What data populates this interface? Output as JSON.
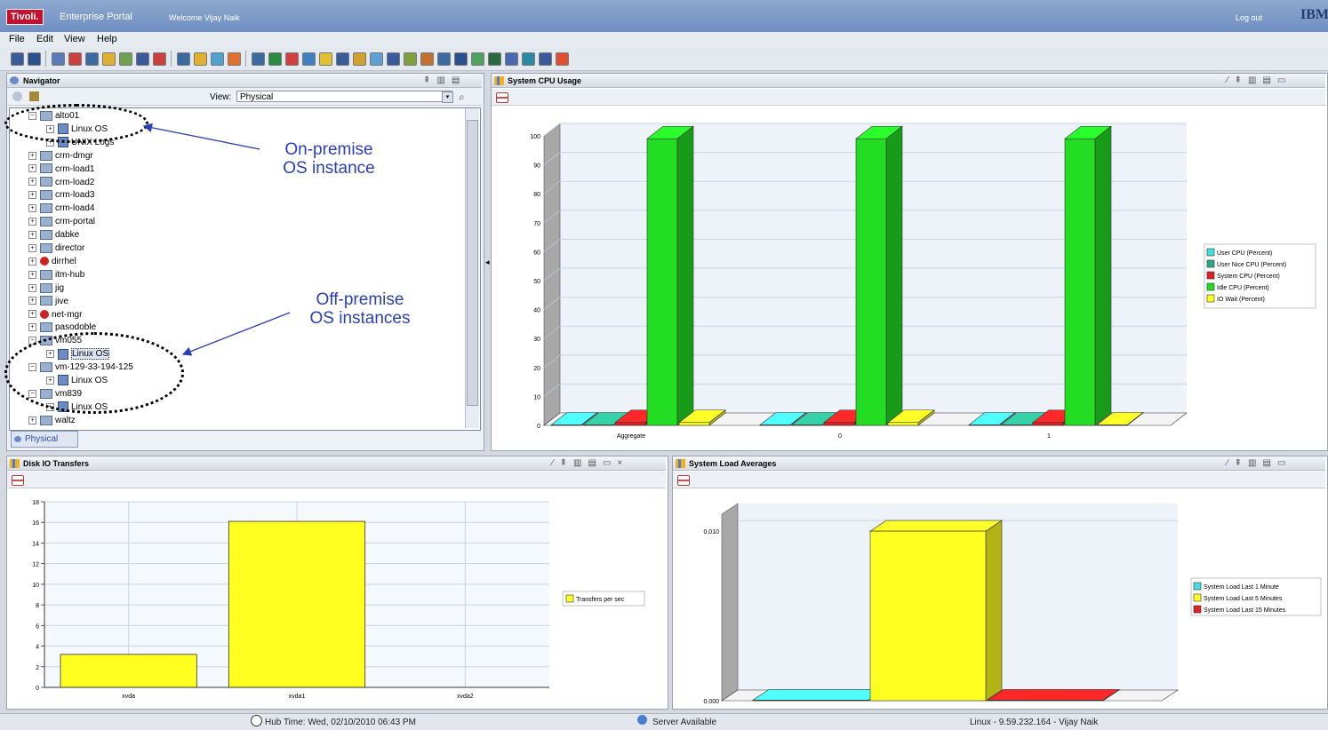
{
  "header": {
    "brand": "Tivoli.",
    "portal": "Enterprise Portal",
    "welcome": "Welcome Vijay Naik",
    "logout": "Log out",
    "ibm": "IBM"
  },
  "menu": [
    "File",
    "Edit",
    "View",
    "Help"
  ],
  "navigator": {
    "title": "Navigator",
    "view_label": "View:",
    "view_value": "Physical",
    "tab": "Physical",
    "items": [
      "alto01",
      "Linux OS",
      "UNIX Logs",
      "crm-dmgr",
      "crm-load1",
      "crm-load2",
      "crm-load3",
      "crm-load4",
      "crm-portal",
      "dabke",
      "director",
      "dirrhel",
      "itm-hub",
      "jig",
      "jive",
      "net-mgr",
      "pasodoble",
      "vm055",
      "Linux OS",
      "vm-129-33-194-125",
      "Linux OS",
      "vm839",
      "Linux OS",
      "waltz"
    ],
    "annotations": {
      "on_premise": [
        "On-premise",
        "OS instance"
      ],
      "off_premise": [
        "Off-premise",
        "OS instances"
      ]
    }
  },
  "colors": {
    "user": "#40e0e0",
    "nice": "#2aa888",
    "system": "#e02020",
    "idle": "#22dd22",
    "iowait": "#ffff20",
    "accent": "#2a3fb8"
  },
  "panels": {
    "cpu": {
      "title": "System CPU Usage"
    },
    "disk": {
      "title": "Disk IO Transfers"
    },
    "load": {
      "title": "System Load Averages"
    }
  },
  "chart_data": [
    {
      "type": "bar",
      "title": "System CPU Usage",
      "categories": [
        "Aggregate",
        "0",
        "1"
      ],
      "series": [
        {
          "name": "User CPU (Percent)",
          "values": [
            0,
            0,
            0
          ]
        },
        {
          "name": "User Nice CPU (Percent)",
          "values": [
            0,
            0,
            0
          ]
        },
        {
          "name": "System CPU (Percent)",
          "values": [
            1,
            1,
            1
          ]
        },
        {
          "name": "Idle CPU (Percent)",
          "values": [
            99,
            99,
            99
          ]
        },
        {
          "name": "IO Wait (Percent)",
          "values": [
            1,
            1,
            0
          ]
        }
      ],
      "yticks": [
        0,
        10,
        20,
        30,
        40,
        50,
        60,
        70,
        80,
        90,
        100
      ],
      "ylim": [
        0,
        100
      ],
      "grid": true,
      "legend": "right"
    },
    {
      "type": "bar",
      "title": "Disk IO Transfers",
      "categories": [
        "xvda",
        "xvda1",
        "xvda2"
      ],
      "series": [
        {
          "name": "Transfers per sec",
          "values": [
            3.2,
            16.1,
            0
          ]
        }
      ],
      "yticks": [
        0,
        2,
        4,
        6,
        8,
        10,
        12,
        14,
        16,
        18
      ],
      "ylim": [
        0,
        18
      ],
      "grid": true,
      "legend": "right"
    },
    {
      "type": "bar",
      "title": "System Load Averages",
      "categories": [
        ""
      ],
      "series": [
        {
          "name": "System Load Last 1 Minute",
          "values": [
            0
          ]
        },
        {
          "name": "System Load Last 5 Minutes",
          "values": [
            0.01
          ]
        },
        {
          "name": "System Load Last 15 Minutes",
          "values": [
            0
          ]
        }
      ],
      "yticks": [
        "0.000",
        "0.010"
      ],
      "ylim": [
        0,
        0.011
      ],
      "grid": true,
      "legend": "right"
    }
  ],
  "status": {
    "hub_time": "Hub Time: Wed, 02/10/2010 06:43 PM",
    "server": "Server Available",
    "user": "Linux - 9.59.232.164 - Vijay Naik"
  }
}
